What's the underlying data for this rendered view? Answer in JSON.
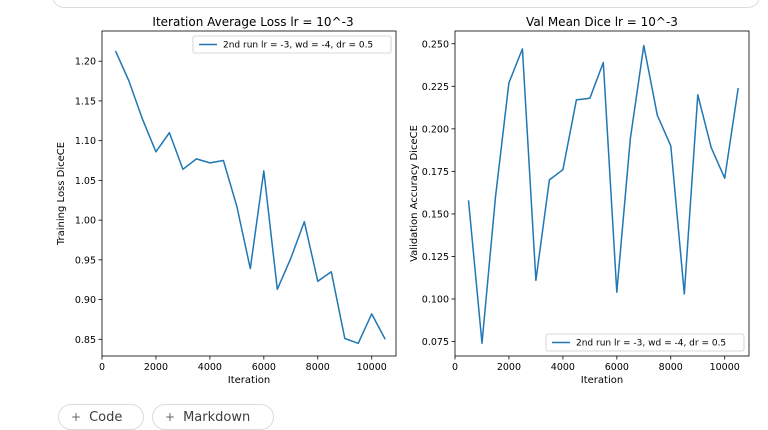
{
  "chart_data": [
    {
      "type": "line",
      "title": "Iteration Average Loss lr = 10^-3",
      "xlabel": "Iteration",
      "ylabel": "Training Loss DiceCE",
      "xlim": [
        0,
        10900
      ],
      "ylim": [
        0.829,
        1.238
      ],
      "xticks": [
        "0",
        "2000",
        "4000",
        "6000",
        "8000",
        "10000"
      ],
      "yticks": [
        "0.85",
        "0.90",
        "0.95",
        "1.00",
        "1.05",
        "1.10",
        "1.15",
        "1.20"
      ],
      "legend_position": "top-right",
      "color": "#1f77b4",
      "series": [
        {
          "name": "2nd run lr = -3, wd = -4, dr = 0.5",
          "x": [
            500,
            1000,
            1500,
            2000,
            2500,
            3000,
            3500,
            4000,
            4500,
            5000,
            5500,
            6000,
            6500,
            7000,
            7500,
            8000,
            8500,
            9000,
            9500,
            10000,
            10500
          ],
          "y": [
            1.213,
            1.175,
            1.127,
            1.086,
            1.11,
            1.064,
            1.077,
            1.072,
            1.075,
            1.017,
            0.939,
            1.062,
            0.913,
            0.952,
            0.998,
            0.923,
            0.935,
            0.851,
            0.845,
            0.882,
            0.85
          ]
        }
      ]
    },
    {
      "type": "line",
      "title": "Val Mean Dice lr = 10^-3",
      "xlabel": "Iteration",
      "ylabel": "Validation Accuracy DiceCE",
      "xlim": [
        0,
        10900
      ],
      "ylim": [
        0.0665,
        0.2575
      ],
      "xticks": [
        "0",
        "2000",
        "4000",
        "6000",
        "8000",
        "10000"
      ],
      "yticks": [
        "0.075",
        "0.100",
        "0.125",
        "0.150",
        "0.175",
        "0.200",
        "0.225",
        "0.250"
      ],
      "legend_position": "bottom-right",
      "color": "#1f77b4",
      "series": [
        {
          "name": "2nd run lr = -3, wd = -4, dr = 0.5",
          "x": [
            500,
            1000,
            1500,
            2000,
            2500,
            3000,
            3500,
            4000,
            4500,
            5000,
            5500,
            6000,
            6500,
            7000,
            7500,
            8000,
            8500,
            9000,
            9500,
            10000,
            10500
          ],
          "y": [
            0.158,
            0.074,
            0.16,
            0.227,
            0.247,
            0.111,
            0.17,
            0.176,
            0.217,
            0.218,
            0.239,
            0.104,
            0.194,
            0.249,
            0.208,
            0.19,
            0.103,
            0.22,
            0.189,
            0.171,
            0.224
          ]
        }
      ]
    }
  ],
  "bottom_bar": {
    "chips": [
      {
        "icon": "code-icon",
        "label": "Code"
      },
      {
        "icon": "text-icon",
        "label": "Markdown"
      }
    ]
  }
}
